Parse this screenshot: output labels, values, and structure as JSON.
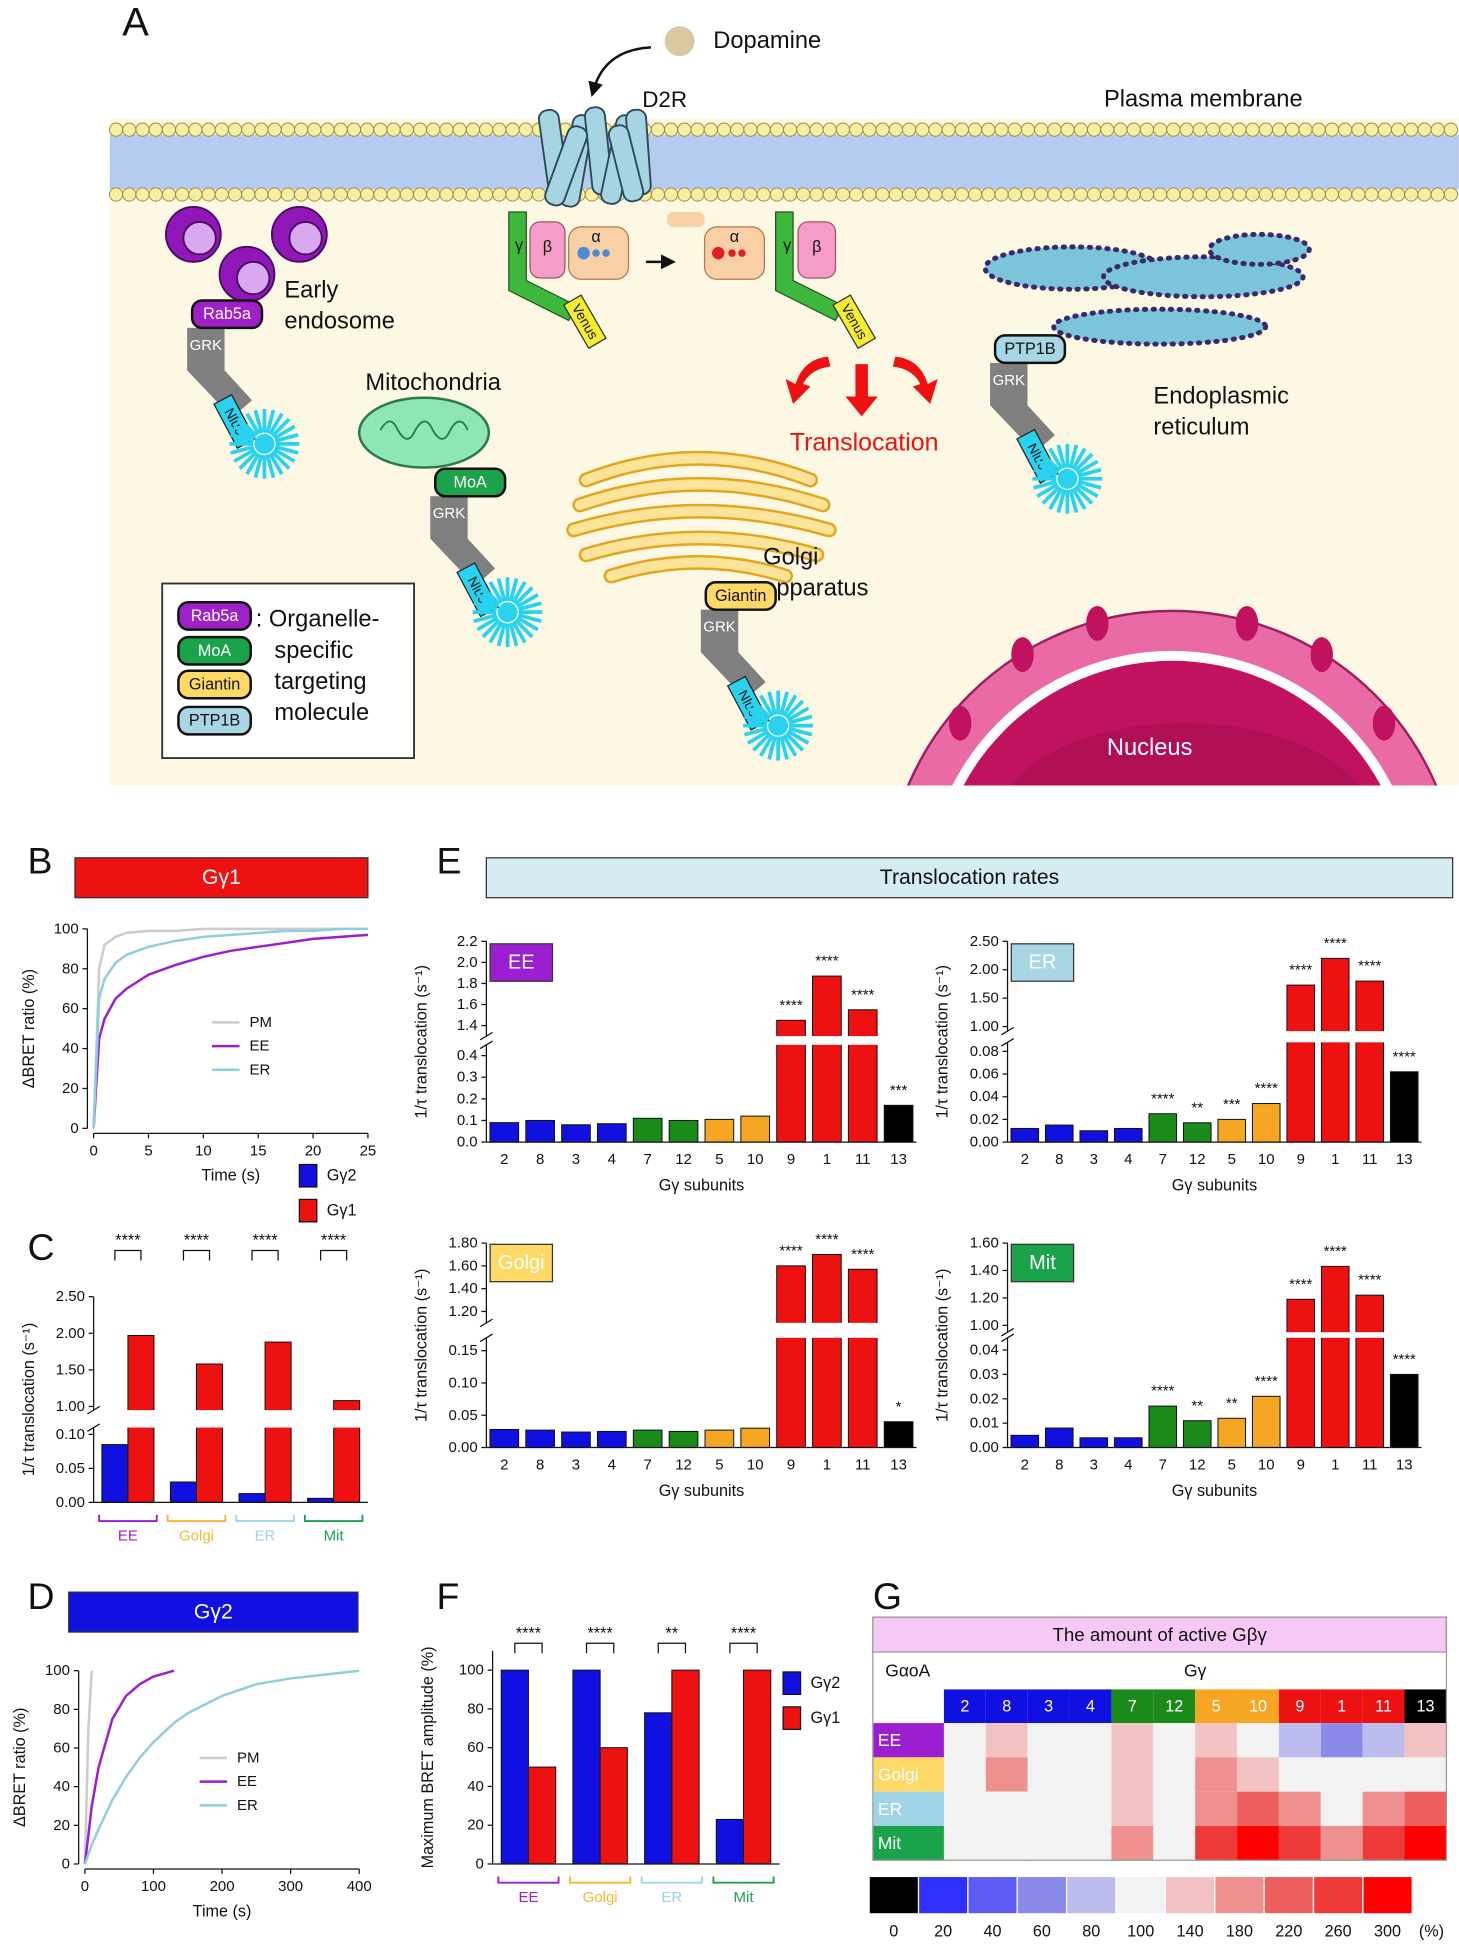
{
  "diagram": {
    "panel": "A",
    "dopamine": "Dopamine",
    "receptor": "D2R",
    "membrane": "Plasma membrane",
    "early_endosome": [
      "Early",
      "endosome"
    ],
    "mitochondria": "Mitochondria",
    "translocation": "Translocation",
    "er": [
      "Endoplasmic",
      "reticulum"
    ],
    "golgi": [
      "Golgi",
      "apparatus"
    ],
    "nucleus": "Nucleus",
    "grk": "GRK",
    "nluc": "Nluc",
    "venus": "Venus",
    "alpha": "α",
    "beta": "β",
    "gamma": "γ",
    "rab5a": "Rab5a",
    "moa": "MoA",
    "giantin": "Giantin",
    "ptp1b": "PTP1B",
    "legend": [
      ": Organelle-",
      "specific",
      "targeting",
      "molecule"
    ]
  },
  "chart_data": [
    {
      "type": "line",
      "panel": "B",
      "title": "Gγ1",
      "title_color": "#ee1111",
      "title_text_color": "#ffffff",
      "x": [
        0,
        0.5,
        1,
        2,
        3,
        5,
        7.5,
        10,
        12.5,
        15,
        17.5,
        20,
        22.5,
        25
      ],
      "series": [
        {
          "name": "PM",
          "color": "#cccccc",
          "values": [
            0,
            80,
            92,
            96,
            98,
            99,
            99,
            100,
            100,
            100,
            100,
            100,
            100,
            100
          ]
        },
        {
          "name": "EE",
          "color": "#9b1fd0",
          "values": [
            0,
            45,
            55,
            65,
            70,
            77,
            82,
            86,
            89,
            91,
            93,
            95,
            96,
            97
          ]
        },
        {
          "name": "ER",
          "color": "#8ecfdc",
          "values": [
            0,
            65,
            75,
            83,
            87,
            91,
            94,
            96,
            97,
            98,
            99,
            99,
            100,
            100
          ]
        }
      ],
      "xlim": [
        0,
        25
      ],
      "xticks": [
        0,
        5,
        10,
        15,
        20,
        25
      ],
      "ylim": [
        0,
        100
      ],
      "yticks": [
        0,
        20,
        40,
        60,
        80,
        100
      ],
      "xlabel": "Time (s)",
      "ylabel": "ΔBRET ratio (%)"
    },
    {
      "type": "bar",
      "panel": "C",
      "categories": [
        "EE",
        "Golgi",
        "ER",
        "Mit"
      ],
      "category_colors": [
        "#9b1fd0",
        "#f5b731",
        "#9fd3e6",
        "#1aa34a"
      ],
      "series": [
        {
          "name": "Gγ2",
          "color": "#1010e0",
          "values": [
            0.085,
            0.03,
            0.013,
            0.006
          ]
        },
        {
          "name": "Gγ1",
          "color": "#ee1111",
          "values": [
            1.97,
            1.58,
            1.88,
            1.08
          ]
        }
      ],
      "annotations": [
        "****",
        "****",
        "****",
        "****"
      ],
      "ylim": [
        0,
        2.5
      ],
      "ybreak": [
        0.11,
        0.95
      ],
      "yticks": [
        {
          "value": 0,
          "label": "0.00"
        },
        0.05,
        {
          "value": 0.1,
          "label": "0.10"
        },
        {
          "value": 1,
          "label": "1.00"
        },
        {
          "value": 1.5,
          "label": "1.50"
        },
        {
          "value": 2,
          "label": "2.00"
        },
        {
          "value": 2.5,
          "label": "2.50"
        }
      ],
      "ylabel": "1/τ translocation (s⁻¹)"
    },
    {
      "type": "line",
      "panel": "D",
      "title": "Gγ2",
      "title_color": "#1010e0",
      "title_text_color": "#ffffff",
      "x": [
        0,
        5,
        10,
        20,
        40,
        60,
        80,
        100,
        130,
        150,
        200,
        250,
        300,
        350,
        400
      ],
      "series": [
        {
          "name": "PM",
          "color": "#cccccc",
          "values": [
            0,
            70,
            100,
            null,
            null,
            null,
            null,
            null,
            null,
            null,
            null,
            null,
            null,
            null,
            null
          ]
        },
        {
          "name": "EE",
          "color": "#9b1fd0",
          "values": [
            0,
            15,
            30,
            50,
            75,
            87,
            93,
            97,
            100,
            null,
            null,
            null,
            null,
            null,
            null
          ]
        },
        {
          "name": "ER",
          "color": "#8ecfdc",
          "values": [
            0,
            5,
            10,
            18,
            33,
            45,
            55,
            63,
            73,
            78,
            87,
            93,
            96,
            98,
            100
          ]
        }
      ],
      "xlim": [
        0,
        400
      ],
      "xticks": [
        0,
        100,
        200,
        300,
        400
      ],
      "ylim": [
        0,
        100
      ],
      "yticks": [
        0,
        20,
        40,
        60,
        80,
        100
      ],
      "xlabel": "Time (s)",
      "ylabel": "ΔBRET ratio (%)"
    },
    {
      "type": "bar",
      "panel": "E",
      "title": "Translocation rates",
      "title_color": "#d4ecf2",
      "title_text_color": "#111111",
      "label": "EE",
      "label_color": "#9b1fd0",
      "categories": [
        "2",
        "8",
        "3",
        "4",
        "7",
        "12",
        "5",
        "10",
        "9",
        "1",
        "11",
        "13"
      ],
      "colors": [
        "#1010e0",
        "#1010e0",
        "#1010e0",
        "#1010e0",
        "#1a8a1a",
        "#1a8a1a",
        "#f5a623",
        "#f5a623",
        "#ee1111",
        "#ee1111",
        "#ee1111",
        "#000000"
      ],
      "values": [
        0.09,
        0.1,
        0.08,
        0.085,
        0.11,
        0.1,
        0.105,
        0.12,
        1.45,
        1.87,
        1.55,
        0.17
      ],
      "annotations": [
        null,
        null,
        null,
        null,
        null,
        null,
        null,
        null,
        "****",
        "****",
        "****",
        "***"
      ],
      "ylim": [
        0,
        2.2
      ],
      "ybreak": [
        0.45,
        1.3
      ],
      "yticks": [
        {
          "value": 0,
          "label": "0.0"
        },
        0.1,
        0.2,
        0.3,
        0.4,
        1.4,
        1.6,
        1.8,
        {
          "value": 2,
          "label": "2.0"
        },
        2.2
      ],
      "xlabel": "Gγ subunits",
      "ylabel": "1/τ translocation (s⁻¹)"
    },
    {
      "type": "bar",
      "label": "ER",
      "label_color": "#a9d6e5",
      "categories": [
        "2",
        "8",
        "3",
        "4",
        "7",
        "12",
        "5",
        "10",
        "9",
        "1",
        "11",
        "13"
      ],
      "colors": [
        "#1010e0",
        "#1010e0",
        "#1010e0",
        "#1010e0",
        "#1a8a1a",
        "#1a8a1a",
        "#f5a623",
        "#f5a623",
        "#ee1111",
        "#ee1111",
        "#ee1111",
        "#000000"
      ],
      "values": [
        0.012,
        0.015,
        0.01,
        0.012,
        0.025,
        0.017,
        0.02,
        0.034,
        1.73,
        2.2,
        1.8,
        0.062
      ],
      "annotations": [
        null,
        null,
        null,
        null,
        "****",
        "**",
        "***",
        "****",
        "****",
        "****",
        "****",
        "****"
      ],
      "ylim": [
        0,
        2.5
      ],
      "ybreak": [
        0.088,
        0.92
      ],
      "yticks": [
        {
          "value": 0,
          "label": "0.00"
        },
        0.02,
        0.04,
        0.06,
        0.08,
        {
          "value": 1,
          "label": "1.00"
        },
        {
          "value": 1.5,
          "label": "1.50"
        },
        {
          "value": 2,
          "label": "2.00"
        },
        {
          "value": 2.5,
          "label": "2.50"
        }
      ],
      "xlabel": "Gγ subunits",
      "ylabel": "1/τ translocation (s⁻¹)"
    },
    {
      "type": "bar",
      "label": "Golgi",
      "label_color": "#ffd966",
      "categories": [
        "2",
        "8",
        "3",
        "4",
        "7",
        "12",
        "5",
        "10",
        "9",
        "1",
        "11",
        "13"
      ],
      "colors": [
        "#1010e0",
        "#1010e0",
        "#1010e0",
        "#1010e0",
        "#1a8a1a",
        "#1a8a1a",
        "#f5a623",
        "#f5a623",
        "#ee1111",
        "#ee1111",
        "#ee1111",
        "#000000"
      ],
      "values": [
        0.028,
        0.027,
        0.024,
        0.025,
        0.027,
        0.025,
        0.027,
        0.03,
        1.6,
        1.7,
        1.57,
        0.04
      ],
      "annotations": [
        null,
        null,
        null,
        null,
        null,
        null,
        null,
        null,
        "****",
        "****",
        "****",
        "*"
      ],
      "ylim": [
        0,
        1.8
      ],
      "ybreak": [
        0.17,
        1.1
      ],
      "yticks": [
        {
          "value": 0,
          "label": "0.00"
        },
        0.05,
        {
          "value": 0.1,
          "label": "0.10"
        },
        0.15,
        {
          "value": 1.2,
          "label": "1.20"
        },
        {
          "value": 1.4,
          "label": "1.40"
        },
        {
          "value": 1.6,
          "label": "1.60"
        },
        {
          "value": 1.8,
          "label": "1.80"
        }
      ],
      "xlabel": "Gγ subunits",
      "ylabel": "1/τ translocation (s⁻¹)"
    },
    {
      "type": "bar",
      "label": "Mit",
      "label_color": "#1aa34a",
      "categories": [
        "2",
        "8",
        "3",
        "4",
        "7",
        "12",
        "5",
        "10",
        "9",
        "1",
        "11",
        "13"
      ],
      "colors": [
        "#1010e0",
        "#1010e0",
        "#1010e0",
        "#1010e0",
        "#1a8a1a",
        "#1a8a1a",
        "#f5a623",
        "#f5a623",
        "#ee1111",
        "#ee1111",
        "#ee1111",
        "#000000"
      ],
      "values": [
        0.005,
        0.008,
        0.004,
        0.004,
        0.017,
        0.011,
        0.012,
        0.021,
        1.19,
        1.43,
        1.22,
        0.03
      ],
      "annotations": [
        null,
        null,
        null,
        null,
        "****",
        "**",
        "**",
        "****",
        "****",
        "****",
        "****",
        "****"
      ],
      "ylim": [
        0,
        1.6
      ],
      "ybreak": [
        0.045,
        0.95
      ],
      "yticks": [
        {
          "value": 0,
          "label": "0.00"
        },
        0.01,
        0.02,
        0.03,
        0.04,
        {
          "value": 1,
          "label": "1.00"
        },
        {
          "value": 1.2,
          "label": "1.20"
        },
        {
          "value": 1.4,
          "label": "1.40"
        },
        {
          "value": 1.6,
          "label": "1.60"
        }
      ],
      "xlabel": "Gγ subunits",
      "ylabel": "1/τ translocation (s⁻¹)"
    },
    {
      "type": "bar",
      "panel": "F",
      "categories": [
        "EE",
        "Golgi",
        "ER",
        "Mit"
      ],
      "category_colors": [
        "#9b1fd0",
        "#f5b731",
        "#9fd3e6",
        "#1aa34a"
      ],
      "series": [
        {
          "name": "Gγ2",
          "color": "#1010e0",
          "values": [
            100,
            100,
            78,
            23
          ]
        },
        {
          "name": "Gγ1",
          "color": "#ee1111",
          "values": [
            50,
            60,
            100,
            100
          ]
        }
      ],
      "annotations": [
        "****",
        "****",
        "**",
        "****"
      ],
      "ylim": [
        0,
        110
      ],
      "yticks": [
        0,
        20,
        40,
        60,
        80,
        100
      ],
      "ylabel": "Maximum BRET amplitude (%)"
    },
    {
      "type": "heatmap",
      "panel": "G",
      "title": "The amount of active Gβγ",
      "title_color": "#f6c8f6",
      "row_header": "GαoA",
      "column_title": "Gγ",
      "columns": [
        "2",
        "8",
        "3",
        "4",
        "7",
        "12",
        "5",
        "10",
        "9",
        "1",
        "11",
        "13"
      ],
      "column_colors": [
        "#1010e0",
        "#1010e0",
        "#1010e0",
        "#1010e0",
        "#1a8a1a",
        "#1a8a1a",
        "#f5a623",
        "#f5a623",
        "#ee1111",
        "#ee1111",
        "#ee1111",
        "#000000"
      ],
      "rows": [
        "EE",
        "Golgi",
        "ER",
        "Mit"
      ],
      "row_colors": [
        "#9b1fd0",
        "#ffd966",
        "#9fd3e6",
        "#1aa34a"
      ],
      "values": [
        [
          100,
          140,
          100,
          100,
          140,
          100,
          140,
          100,
          80,
          60,
          80,
          140
        ],
        [
          100,
          180,
          100,
          100,
          140,
          100,
          180,
          140,
          100,
          100,
          100,
          100
        ],
        [
          100,
          100,
          100,
          100,
          140,
          100,
          180,
          220,
          180,
          100,
          180,
          220
        ],
        [
          100,
          100,
          100,
          100,
          180,
          100,
          260,
          300,
          260,
          180,
          260,
          300
        ]
      ],
      "colorbar": {
        "ticks": [
          0,
          20,
          40,
          60,
          80,
          100,
          140,
          180,
          220,
          260,
          300
        ],
        "colors": [
          "#000000",
          "#2f2fff",
          "#5c5cf5",
          "#8a8ae8",
          "#bcbcee",
          "#f2f2f2",
          "#f3c2c2",
          "#ef9090",
          "#ee6060",
          "#ef3a3a",
          "#ff0000"
        ],
        "unit": "(%)"
      }
    }
  ]
}
